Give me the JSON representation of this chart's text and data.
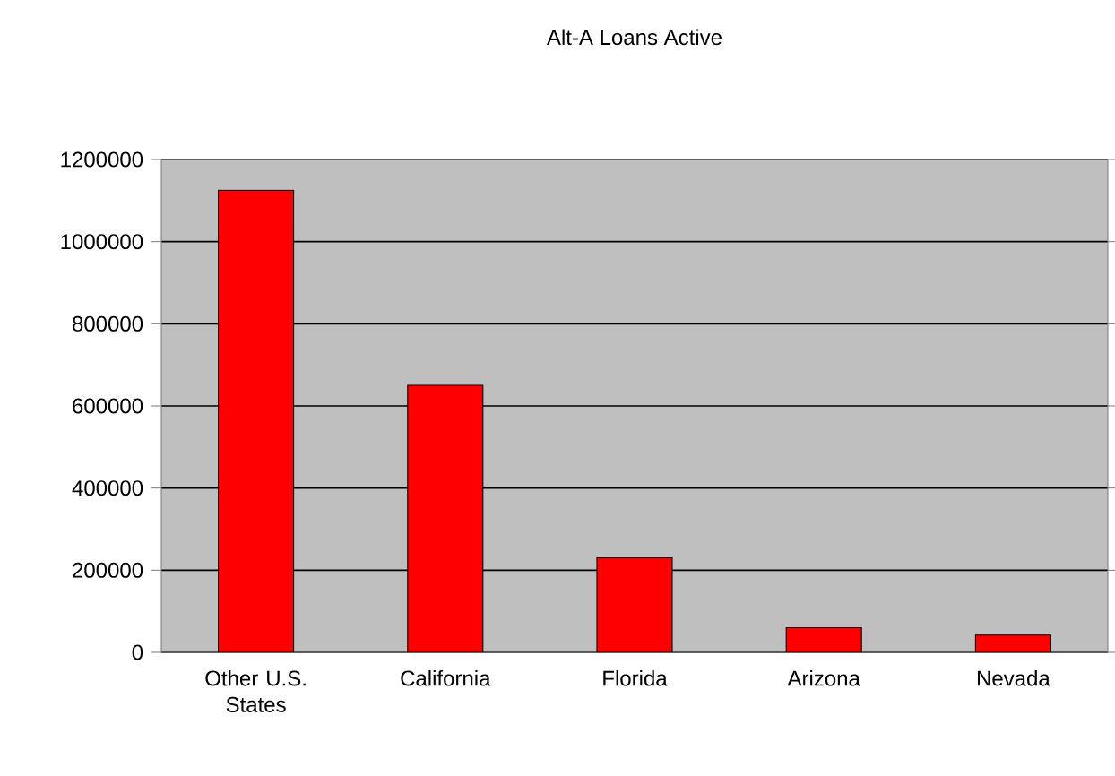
{
  "chart_data": {
    "type": "bar",
    "title": "Alt-A Loans Active",
    "categories": [
      "Other U.S. States",
      "California",
      "Florida",
      "Arizona",
      "Nevada"
    ],
    "values": [
      1125000,
      650000,
      230000,
      60000,
      42000
    ],
    "color": "#ff0000",
    "ylim": [
      0,
      1200000
    ],
    "yticks": [
      0,
      200000,
      400000,
      600000,
      800000,
      1000000,
      1200000
    ],
    "grid": "y"
  }
}
